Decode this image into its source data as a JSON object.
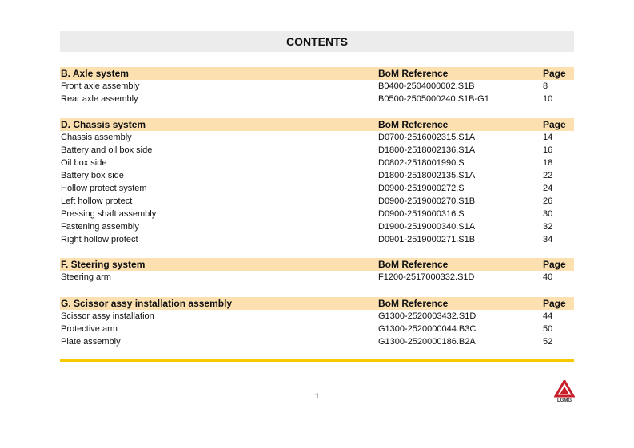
{
  "title": "CONTENTS",
  "sections": [
    {
      "heading": "B.   Axle system",
      "bom_label": "BoM Reference",
      "page_label": "Page",
      "items": [
        {
          "name": "Front axle assembly",
          "bom": "B0400-2504000002.S1B",
          "page": "8"
        },
        {
          "name": "Rear axle assembly",
          "bom": "B0500-2505000240.S1B-G1",
          "page": "10"
        }
      ]
    },
    {
      "heading": "D.   Chassis system",
      "bom_label": "BoM Reference",
      "page_label": "Page",
      "items": [
        {
          "name": "Chassis assembly",
          "bom": "D0700-2516002315.S1A",
          "page": "14"
        },
        {
          "name": "Battery and oil box side",
          "bom": "D1800-2518002136.S1A",
          "page": "16"
        },
        {
          "name": "Oil box side",
          "bom": "D0802-2518001990.S",
          "page": "18"
        },
        {
          "name": "Battery box side",
          "bom": "D1800-2518002135.S1A",
          "page": "22"
        },
        {
          "name": "Hollow protect system",
          "bom": "D0900-2519000272.S",
          "page": "24"
        },
        {
          "name": "Left hollow protect",
          "bom": "D0900-2519000270.S1B",
          "page": "26"
        },
        {
          "name": "Pressing shaft assembly",
          "bom": "D0900-2519000316.S",
          "page": "30"
        },
        {
          "name": "Fastening assembly",
          "bom": "D1900-2519000340.S1A",
          "page": "32"
        },
        {
          "name": "Right hollow protect",
          "bom": "D0901-2519000271.S1B",
          "page": "34"
        }
      ]
    },
    {
      "heading": "F.   Steering system",
      "bom_label": "BoM Reference",
      "page_label": "Page",
      "items": [
        {
          "name": "Steering arm",
          "bom": "F1200-2517000332.S1D",
          "page": "40"
        }
      ]
    },
    {
      "heading": "G.   Scissor assy installation assembly",
      "bom_label": "BoM Reference",
      "page_label": "Page",
      "items": [
        {
          "name": "Scissor assy installation",
          "bom": "G1300-2520003432.S1D",
          "page": "44"
        },
        {
          "name": "Protective arm",
          "bom": "G1300-2520000044.B3C",
          "page": "50"
        },
        {
          "name": "Plate assembly",
          "bom": "G1300-2520000186.B2A",
          "page": "52"
        }
      ]
    }
  ],
  "footer": {
    "page_number": "1",
    "logo_text": "LGMG"
  },
  "colors": {
    "header_bg": "#fde0b0",
    "title_bg": "#ececec",
    "rule": "#f5c800",
    "logo": "#c8202a"
  }
}
